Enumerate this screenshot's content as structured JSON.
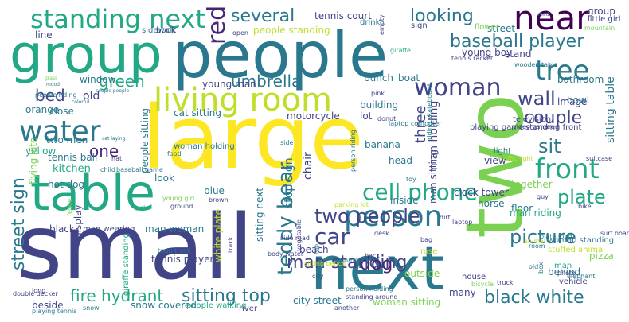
{
  "words": [
    {
      "text": "large",
      "color": "#fde725"
    },
    {
      "text": "small",
      "color": "#414487"
    },
    {
      "text": "two",
      "color": "#7ad151"
    },
    {
      "text": "group",
      "color": "#22a884"
    },
    {
      "text": "people",
      "color": "#2a788e"
    },
    {
      "text": "next",
      "color": "#2a788e"
    },
    {
      "text": "table",
      "color": "#22a884"
    },
    {
      "text": "near",
      "color": "#440154"
    },
    {
      "text": "standing next",
      "color": "#22a884"
    },
    {
      "text": "living room",
      "color": "#bddf26"
    },
    {
      "text": "woman",
      "color": "#414487"
    },
    {
      "text": "person",
      "color": "#2a788e"
    },
    {
      "text": "tree",
      "color": "#2a788e"
    },
    {
      "text": "water",
      "color": "#2a788e"
    },
    {
      "text": "front",
      "color": "#22a884"
    },
    {
      "text": "red",
      "color": "#482475"
    },
    {
      "text": "teddy bear",
      "color": "#2a788e"
    },
    {
      "text": "cell phone",
      "color": "#22a884"
    },
    {
      "text": "car",
      "color": "#414487"
    },
    {
      "text": "two people",
      "color": "#414487"
    },
    {
      "text": "street sign",
      "color": "#2a788e"
    },
    {
      "text": "baseball player",
      "color": "#2a788e"
    },
    {
      "text": "several",
      "color": "#2a788e"
    },
    {
      "text": "looking",
      "color": "#2a788e"
    },
    {
      "text": "umbrella",
      "color": "#2a788e"
    },
    {
      "text": "green",
      "color": "#22a884"
    },
    {
      "text": "wall",
      "color": "#414487"
    },
    {
      "text": "couple",
      "color": "#414487"
    },
    {
      "text": "sit",
      "color": "#2a788e"
    },
    {
      "text": "one",
      "color": "#482475"
    },
    {
      "text": "plate",
      "color": "#22a884"
    },
    {
      "text": "picture",
      "color": "#2a788e"
    },
    {
      "text": "black white",
      "color": "#2a788e"
    },
    {
      "text": "sitting top",
      "color": "#2a788e"
    },
    {
      "text": "man standing",
      "color": "#414487"
    },
    {
      "text": "fire hydrant",
      "color": "#22a884"
    },
    {
      "text": "dog",
      "color": "#482475"
    },
    {
      "text": "bed",
      "color": "#414487"
    },
    {
      "text": "old",
      "color": "#414487"
    },
    {
      "text": "kitchen",
      "color": "#22a884"
    },
    {
      "text": "stop sign",
      "color": "#2a788e"
    },
    {
      "text": "three",
      "color": "#414487"
    },
    {
      "text": "man holding",
      "color": "#414487"
    },
    {
      "text": "sitting table",
      "color": "#2a788e"
    },
    {
      "text": "man sitting",
      "color": "#414487"
    },
    {
      "text": "tennis court",
      "color": "#414487"
    },
    {
      "text": "people standing",
      "color": "#bddf26"
    },
    {
      "text": "window",
      "color": "#2a788e"
    },
    {
      "text": "bathroom",
      "color": "#2a788e"
    },
    {
      "text": "bunch",
      "color": "#2a788e"
    },
    {
      "text": "boat",
      "color": "#2a788e"
    },
    {
      "text": "building",
      "color": "#2a788e"
    },
    {
      "text": "lot",
      "color": "#414487"
    },
    {
      "text": "banana",
      "color": "#2a788e"
    },
    {
      "text": "motorcycle",
      "color": "#414487"
    },
    {
      "text": "cat sitting",
      "color": "#2a788e"
    },
    {
      "text": "close",
      "color": "#2a788e"
    },
    {
      "text": "orange",
      "color": "#2a788e"
    },
    {
      "text": "two men",
      "color": "#2a788e"
    },
    {
      "text": "yellow",
      "color": "#22a884"
    },
    {
      "text": "tennis ball",
      "color": "#2a788e"
    },
    {
      "text": "flying kite",
      "color": "#7ad151"
    },
    {
      "text": "hot dog",
      "color": "#2a788e"
    },
    {
      "text": "blue",
      "color": "#2a788e"
    },
    {
      "text": "look",
      "color": "#2a788e"
    },
    {
      "text": "people sitting",
      "color": "#2a788e"
    },
    {
      "text": "chair",
      "color": "#414487"
    },
    {
      "text": "head",
      "color": "#2a788e"
    },
    {
      "text": "inside",
      "color": "#2a788e"
    },
    {
      "text": "horse",
      "color": "#2a788e"
    },
    {
      "text": "together",
      "color": "#7ad151"
    },
    {
      "text": "floor",
      "color": "#2a788e"
    },
    {
      "text": "clock tower",
      "color": "#414487"
    },
    {
      "text": "man riding",
      "color": "#22a884"
    },
    {
      "text": "behind",
      "color": "#2a788e"
    },
    {
      "text": "outside",
      "color": "#7ad151"
    },
    {
      "text": "pizza",
      "color": "#7ad151"
    },
    {
      "text": "beach",
      "color": "#414487"
    },
    {
      "text": "sitting next",
      "color": "#2a788e"
    },
    {
      "text": "city street",
      "color": "#2a788e"
    },
    {
      "text": "many",
      "color": "#414487"
    },
    {
      "text": "woman sitting",
      "color": "#7ad151"
    },
    {
      "text": "black",
      "color": "#414487"
    },
    {
      "text": "display",
      "color": "#414487"
    },
    {
      "text": "man woman",
      "color": "#2a788e"
    },
    {
      "text": "man wearing",
      "color": "#414487"
    },
    {
      "text": "tennis player",
      "color": "#414487"
    },
    {
      "text": "white plate",
      "color": "#bddf26"
    },
    {
      "text": "giraffe standing",
      "color": "#22a884"
    },
    {
      "text": "beside",
      "color": "#414487"
    },
    {
      "text": "people walking",
      "color": "#22a884"
    },
    {
      "text": "snow covered",
      "color": "#2a788e"
    },
    {
      "text": "river",
      "color": "#414487"
    },
    {
      "text": "playing tennis",
      "color": "#2a788e"
    },
    {
      "text": "snow",
      "color": "#2a788e"
    },
    {
      "text": "young man",
      "color": "#414487"
    },
    {
      "text": "young boy",
      "color": "#414487"
    },
    {
      "text": "stand",
      "color": "#414487"
    },
    {
      "text": "image",
      "color": "#414487"
    },
    {
      "text": "bowl",
      "color": "#2a788e"
    },
    {
      "text": "view",
      "color": "#414487"
    },
    {
      "text": "light",
      "color": "#2a788e"
    },
    {
      "text": "traffic light",
      "color": "#bddf26"
    },
    {
      "text": "suitcase",
      "color": "#414487"
    },
    {
      "text": "standing front",
      "color": "#414487"
    },
    {
      "text": "television",
      "color": "#414487"
    },
    {
      "text": "video game",
      "color": "#414487"
    },
    {
      "text": "playing game",
      "color": "#414487"
    },
    {
      "text": "area",
      "color": "#414487"
    },
    {
      "text": "group",
      "color": "#414487"
    },
    {
      "text": "little girl",
      "color": "#414487"
    },
    {
      "text": "mountain",
      "color": "#7ad151"
    },
    {
      "text": "road",
      "color": "#2a788e"
    },
    {
      "text": "street",
      "color": "#2a788e"
    },
    {
      "text": "sign",
      "color": "#414487"
    },
    {
      "text": "flower",
      "color": "#7ad151"
    },
    {
      "text": "wooden table",
      "color": "#2a788e"
    },
    {
      "text": "tennis racket",
      "color": "#414487"
    },
    {
      "text": "line",
      "color": "#414487"
    },
    {
      "text": "sidewalk",
      "color": "#2a788e"
    },
    {
      "text": "book",
      "color": "#414487"
    },
    {
      "text": "open",
      "color": "#414487"
    },
    {
      "text": "drink",
      "color": "#2a788e"
    },
    {
      "text": "empty",
      "color": "#414487"
    },
    {
      "text": "giraffe",
      "color": "#22a884"
    },
    {
      "text": "surf board",
      "color": "#414487"
    },
    {
      "text": "man",
      "color": "#22a884"
    },
    {
      "text": "woman standing",
      "color": "#2a788e"
    },
    {
      "text": "stuffed animal",
      "color": "#bddf26"
    },
    {
      "text": "plate food",
      "color": "#2a788e"
    },
    {
      "text": "room",
      "color": "#2a788e"
    },
    {
      "text": "bike",
      "color": "#414487"
    },
    {
      "text": "people riding",
      "color": "#2a788e"
    },
    {
      "text": "couple people",
      "color": "#2a788e"
    },
    {
      "text": "colorful",
      "color": "#2a788e"
    },
    {
      "text": "grass",
      "color": "#7ad151"
    },
    {
      "text": "mood",
      "color": "#2a788e"
    },
    {
      "text": "cat laying",
      "color": "#2a788e"
    },
    {
      "text": "woman holding",
      "color": "#2a788e"
    },
    {
      "text": "food",
      "color": "#2a788e"
    },
    {
      "text": "ground",
      "color": "#414487"
    },
    {
      "text": "hat",
      "color": "#414487"
    },
    {
      "text": "child",
      "color": "#2a788e"
    },
    {
      "text": "side",
      "color": "#2a788e"
    },
    {
      "text": "pink",
      "color": "#414487"
    },
    {
      "text": "donut",
      "color": "#414487"
    },
    {
      "text": "laptop computer",
      "color": "#2a788e"
    },
    {
      "text": "riding skateboard",
      "color": "#2a788e"
    },
    {
      "text": "person riding",
      "color": "#2a788e"
    },
    {
      "text": "vegetable",
      "color": "#414487"
    },
    {
      "text": "parking lot",
      "color": "#bddf26"
    },
    {
      "text": "toy",
      "color": "#2a788e"
    },
    {
      "text": "guy",
      "color": "#414487"
    },
    {
      "text": "side road",
      "color": "#414487"
    },
    {
      "text": "brown",
      "color": "#414487"
    },
    {
      "text": "young girl",
      "color": "#7ad151"
    },
    {
      "text": "fence",
      "color": "#7ad151"
    },
    {
      "text": "pole",
      "color": "#22a884"
    },
    {
      "text": "baseball game",
      "color": "#2a788e"
    },
    {
      "text": "top",
      "color": "#2a788e"
    },
    {
      "text": "sitting bench",
      "color": "#bddf26"
    },
    {
      "text": "desk",
      "color": "#414487"
    },
    {
      "text": "someone",
      "color": "#2a788e"
    },
    {
      "text": "back",
      "color": "#414487"
    },
    {
      "text": "rose",
      "color": "#bddf26"
    },
    {
      "text": "body water",
      "color": "#414487"
    },
    {
      "text": "house",
      "color": "#414487"
    },
    {
      "text": "animal",
      "color": "#bddf26"
    },
    {
      "text": "bag",
      "color": "#414487"
    },
    {
      "text": "bicycle",
      "color": "#7ad151"
    },
    {
      "text": "truck",
      "color": "#414487"
    },
    {
      "text": "box",
      "color": "#2a788e"
    },
    {
      "text": "photo",
      "color": "#414487"
    },
    {
      "text": "elephant",
      "color": "#2a788e"
    },
    {
      "text": "vehicle",
      "color": "#414487"
    },
    {
      "text": "train track",
      "color": "#2a788e"
    },
    {
      "text": "person holding",
      "color": "#2a788e"
    },
    {
      "text": "standing around",
      "color": "#414487"
    },
    {
      "text": "another",
      "color": "#414487"
    },
    {
      "text": "long",
      "color": "#414487"
    },
    {
      "text": "double decker",
      "color": "#414487"
    },
    {
      "text": "track",
      "color": "#414487"
    },
    {
      "text": "city",
      "color": "#414487"
    },
    {
      "text": "dirt",
      "color": "#414487"
    },
    {
      "text": "laptop",
      "color": "#414487"
    },
    {
      "text": "old",
      "color": "#2a788e"
    }
  ]
}
